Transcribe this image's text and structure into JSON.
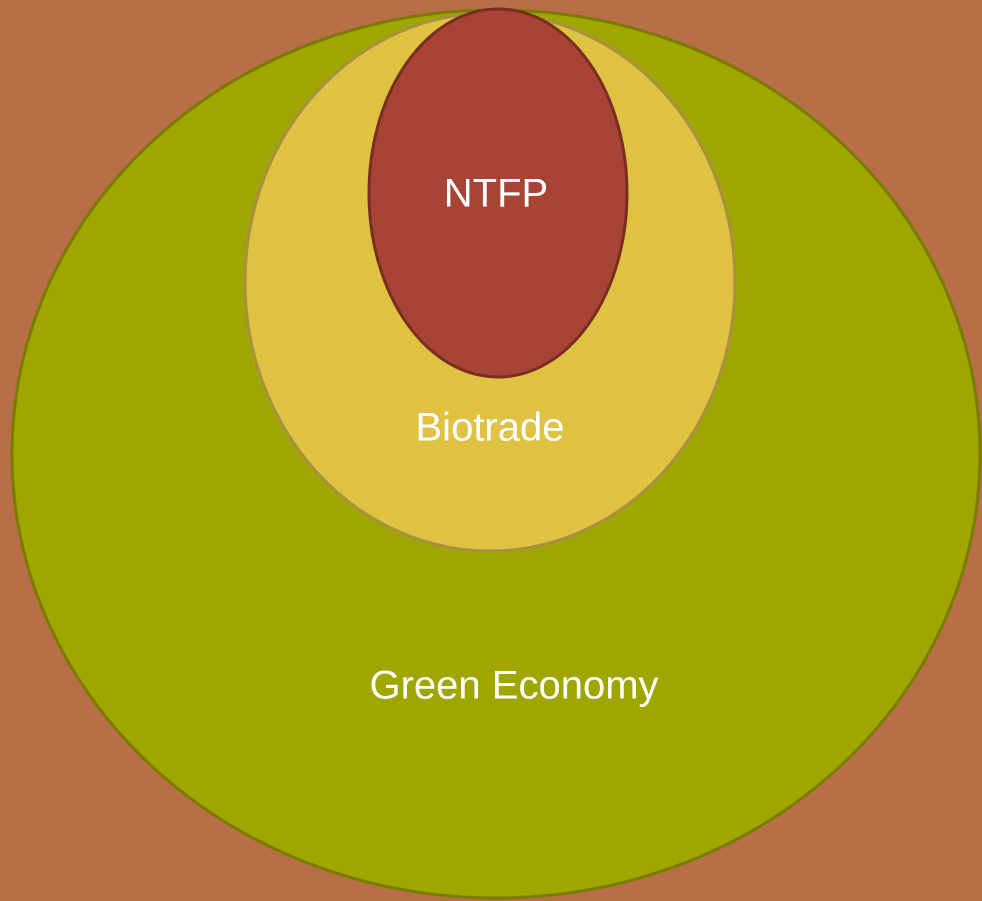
{
  "nodes": [
    {
      "label": "Green Economy"
    },
    {
      "label": "Biotrade"
    },
    {
      "label": "NTFP"
    }
  ]
}
